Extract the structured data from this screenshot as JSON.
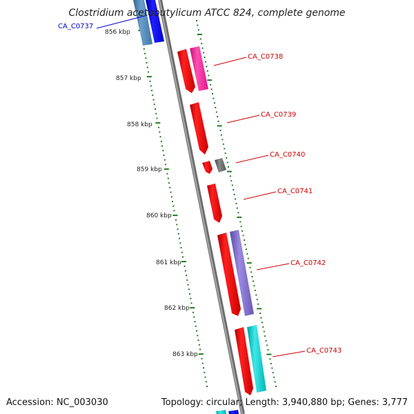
{
  "title": "Clostridium acetobutylicum ATCC 824, complete genome",
  "footer": {
    "accession": "Accession: NC_003030",
    "topology": "Topology: circular; Length: 3,940,880 bp; Genes: 3,777"
  },
  "scale_ticks": [
    "856 kbp",
    "857 kbp",
    "858 kbp",
    "859 kbp",
    "860 kbp",
    "861 kbp",
    "862 kbp",
    "863 kbp"
  ],
  "genes": [
    {
      "name": "CA_C0737",
      "color": "#0000cc"
    },
    {
      "name": "CA_C0738",
      "color": "#cc0000"
    },
    {
      "name": "CA_C0739",
      "color": "#cc0000"
    },
    {
      "name": "CA_C0740",
      "color": "#cc0000"
    },
    {
      "name": "CA_C0741",
      "color": "#cc0000"
    },
    {
      "name": "CA_C0742",
      "color": "#cc0000"
    },
    {
      "name": "CA_C0743",
      "color": "#cc0000"
    }
  ],
  "colors": {
    "cds": "#ff0000",
    "backbone": "#888888",
    "dots": "#1f7a1f",
    "cog_blue": "#0000ff",
    "cog_steel": "#4682b4",
    "cog_pink": "#ff1493",
    "cog_gray": "#666666",
    "cog_purple": "#7b68c8",
    "cog_cyan": "#00c8c8"
  }
}
